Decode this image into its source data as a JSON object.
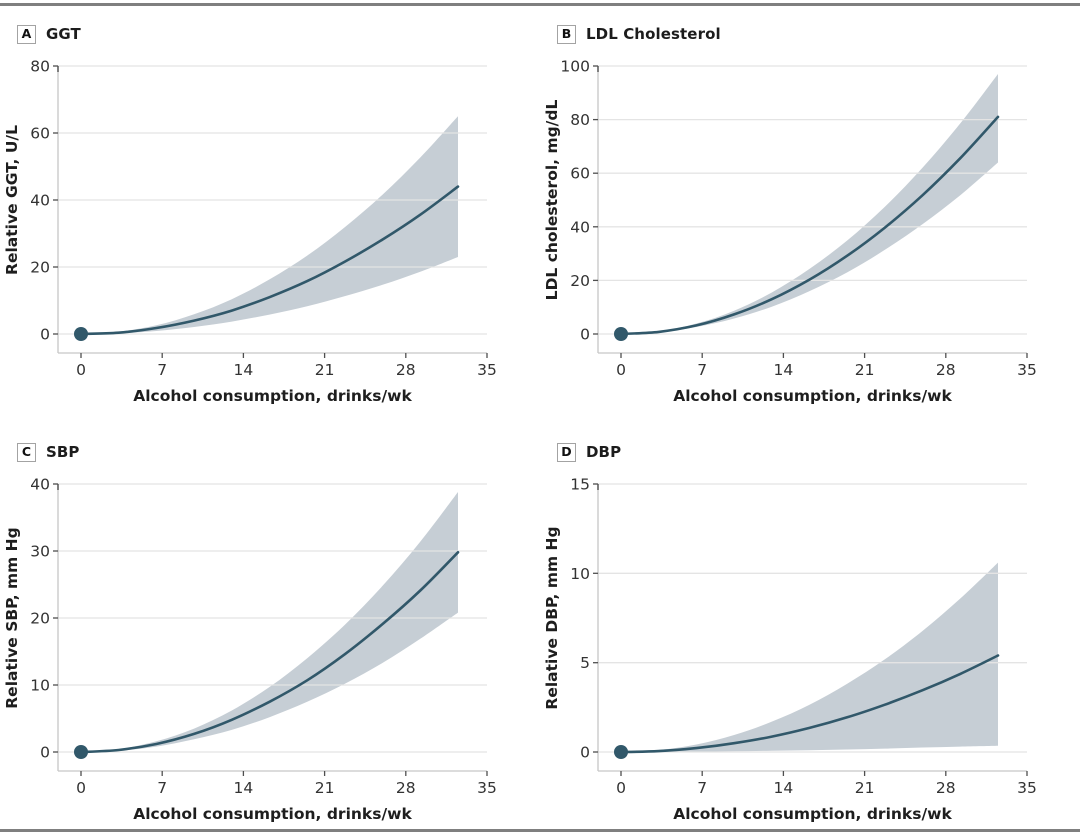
{
  "colors": {
    "line": "#31586a",
    "band": "#c6ced5",
    "grid": "#e4e4e4",
    "axis": "#c6c6c6",
    "tick_mark": "#4f4f4f",
    "tick_text": "#333333",
    "title_text": "#1e1e1e",
    "rule": "#7f7f7f"
  },
  "chart_data": [
    {
      "type": "line",
      "panel_letter": "A",
      "title": "GGT",
      "ylabel": "Relative GGT, U/L",
      "xlabel": "Alcohol consumption, drinks/wk",
      "yticks": [
        0,
        20,
        40,
        60,
        80
      ],
      "ylim": [
        0,
        80
      ],
      "xticks": [
        0,
        7,
        14,
        21,
        28,
        35
      ],
      "xlim": [
        0,
        35
      ],
      "grid": true,
      "legend": "none",
      "x": [
        0,
        3.25,
        6.5,
        9.75,
        13,
        16.25,
        19.5,
        22.75,
        26,
        29.25,
        32.5
      ],
      "series": [
        {
          "name": "mean",
          "values": [
            0,
            0.4,
            1.8,
            4.0,
            7.0,
            11.0,
            15.8,
            21.6,
            28.2,
            35.6,
            44.0
          ]
        },
        {
          "name": "ci_upper",
          "values": [
            0,
            0.7,
            2.6,
            5.9,
            10.4,
            16.3,
            23.4,
            31.9,
            41.6,
            52.7,
            65.0
          ]
        },
        {
          "name": "ci_lower",
          "values": [
            0,
            0.2,
            0.9,
            2.1,
            3.7,
            5.8,
            8.3,
            11.3,
            14.7,
            18.6,
            23.0
          ]
        }
      ],
      "reference_point": {
        "x": 0,
        "y": 0
      }
    },
    {
      "type": "line",
      "panel_letter": "B",
      "title": "LDL Cholesterol",
      "ylabel": "LDL cholesterol, mg/dL",
      "xlabel": "Alcohol consumption, drinks/wk",
      "yticks": [
        0,
        20,
        40,
        60,
        80,
        100
      ],
      "ylim": [
        0,
        100
      ],
      "xticks": [
        0,
        7,
        14,
        21,
        28,
        35
      ],
      "xlim": [
        0,
        35
      ],
      "grid": true,
      "legend": "none",
      "x": [
        0,
        3.25,
        6.5,
        9.75,
        13,
        16.25,
        19.5,
        22.75,
        26,
        29.25,
        32.5
      ],
      "series": [
        {
          "name": "mean",
          "values": [
            0,
            0.8,
            3.2,
            7.3,
            13.0,
            20.3,
            29.2,
            39.7,
            51.8,
            65.6,
            81.0
          ]
        },
        {
          "name": "ci_upper",
          "values": [
            0,
            1.0,
            3.9,
            8.7,
            15.5,
            24.3,
            34.9,
            47.5,
            62.1,
            78.6,
            97.0
          ]
        },
        {
          "name": "ci_lower",
          "values": [
            0,
            0.6,
            2.6,
            5.8,
            10.2,
            16.0,
            23.0,
            31.4,
            41.0,
            51.8,
            64.0
          ]
        }
      ],
      "reference_point": {
        "x": 0,
        "y": 0
      }
    },
    {
      "type": "line",
      "panel_letter": "C",
      "title": "SBP",
      "ylabel": "Relative SBP, mm Hg",
      "xlabel": "Alcohol consumption, drinks/wk",
      "yticks": [
        0,
        10,
        20,
        30,
        40
      ],
      "ylim": [
        0,
        40
      ],
      "xticks": [
        0,
        7,
        14,
        21,
        28,
        35
      ],
      "xlim": [
        0,
        35
      ],
      "grid": true,
      "legend": "none",
      "x": [
        0,
        3.25,
        6.5,
        9.75,
        13,
        16.25,
        19.5,
        22.75,
        26,
        29.25,
        32.5
      ],
      "series": [
        {
          "name": "mean",
          "values": [
            0,
            0.3,
            1.2,
            2.7,
            4.8,
            7.5,
            10.7,
            14.6,
            19.1,
            24.1,
            29.8
          ]
        },
        {
          "name": "ci_upper",
          "values": [
            0,
            0.4,
            1.6,
            3.5,
            6.2,
            9.7,
            14.0,
            19.0,
            24.8,
            31.4,
            38.8
          ]
        },
        {
          "name": "ci_lower",
          "values": [
            0,
            0.2,
            0.8,
            1.9,
            3.3,
            5.2,
            7.5,
            10.2,
            13.3,
            16.9,
            20.8
          ]
        }
      ],
      "reference_point": {
        "x": 0,
        "y": 0
      }
    },
    {
      "type": "line",
      "panel_letter": "D",
      "title": "DBP",
      "ylabel": "Relative DBP, mm Hg",
      "xlabel": "Alcohol consumption, drinks/wk",
      "yticks": [
        0,
        5,
        10,
        15
      ],
      "ylim": [
        0,
        15
      ],
      "xticks": [
        0,
        7,
        14,
        21,
        28,
        35
      ],
      "xlim": [
        0,
        35
      ],
      "grid": true,
      "legend": "none",
      "x": [
        0,
        3.25,
        6.5,
        9.75,
        13,
        16.25,
        19.5,
        22.75,
        26,
        29.25,
        32.5
      ],
      "series": [
        {
          "name": "mean",
          "values": [
            0,
            0.05,
            0.22,
            0.49,
            0.86,
            1.35,
            1.94,
            2.65,
            3.46,
            4.37,
            5.4
          ]
        },
        {
          "name": "ci_upper",
          "values": [
            0,
            0.11,
            0.42,
            0.95,
            1.7,
            2.65,
            3.82,
            5.19,
            6.78,
            8.59,
            10.6
          ]
        },
        {
          "name": "ci_lower",
          "values": [
            0,
            0.01,
            0.02,
            0.04,
            0.07,
            0.1,
            0.14,
            0.19,
            0.25,
            0.3,
            0.35
          ]
        }
      ],
      "reference_point": {
        "x": 0,
        "y": 0
      }
    }
  ]
}
